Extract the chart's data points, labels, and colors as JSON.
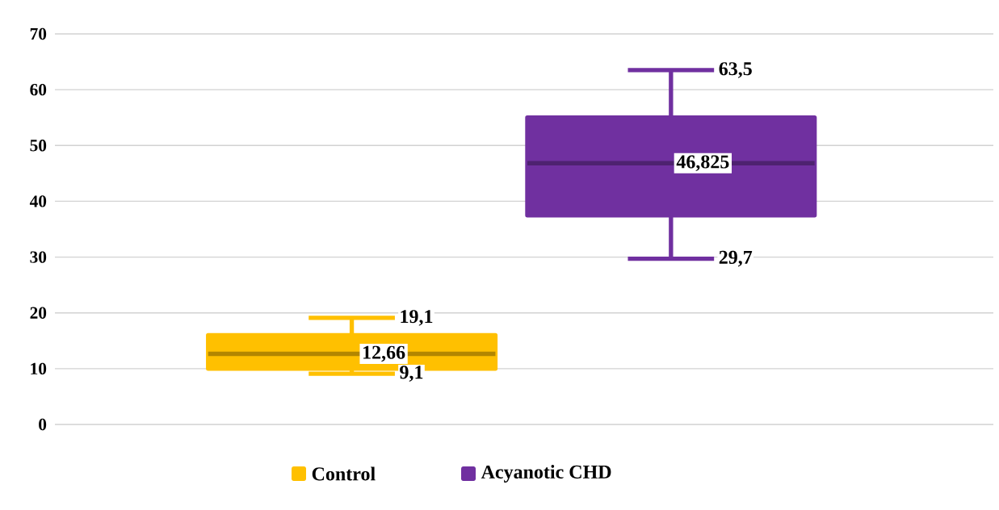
{
  "chart_data": {
    "type": "box",
    "categories": [
      null,
      null
    ],
    "series": [
      {
        "name": "Control",
        "color": "#ffc000",
        "boxes": [
          {
            "low": 9.1,
            "q1": 10,
            "median": 12.66,
            "q3": 16,
            "high": 19.1
          },
          null
        ]
      },
      {
        "name": "Acyanotic CHD",
        "color": "#7030a0",
        "boxes": [
          null,
          {
            "low": 29.7,
            "q1": 37.5,
            "median": 46.825,
            "q3": 55,
            "high": 63.5
          }
        ]
      }
    ],
    "annotations": [
      "19,1",
      "12,66",
      "9,1",
      "63,5",
      "46,825",
      "29,7"
    ],
    "ylim": [
      0,
      70
    ],
    "yticks": [
      0,
      10,
      20,
      30,
      40,
      50,
      60,
      70
    ],
    "grid": "y",
    "legend": "bottom"
  }
}
